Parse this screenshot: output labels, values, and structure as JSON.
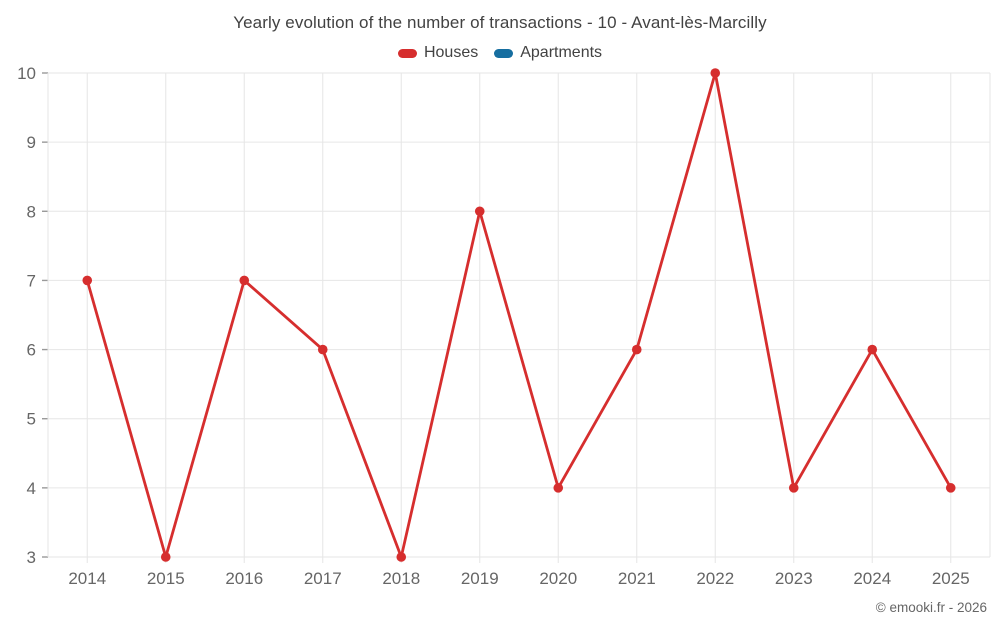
{
  "title": "Yearly evolution of the number of transactions - 10 - Avant-lès-Marcilly",
  "legend": {
    "items": [
      {
        "label": "Houses",
        "color": "#d62e2e"
      },
      {
        "label": "Apartments",
        "color": "#166ea0"
      }
    ]
  },
  "footer": {
    "copyright": "© emooki.fr - 2026"
  },
  "colors": {
    "houses": "#d62e2e",
    "apartments": "#166ea0",
    "gridline": "#e6e6e6",
    "axis_tick": "#999999",
    "axis_label": "#666666",
    "title_text": "#424242"
  },
  "chart_data": {
    "type": "line",
    "title": "Yearly evolution of the number of transactions - 10 - Avant-lès-Marcilly",
    "categories": [
      "2014",
      "2015",
      "2016",
      "2017",
      "2018",
      "2019",
      "2020",
      "2021",
      "2022",
      "2023",
      "2024",
      "2025"
    ],
    "series": [
      {
        "name": "Houses",
        "color": "#d62e2e",
        "values": [
          7,
          3,
          7,
          6,
          3,
          8,
          4,
          6,
          10,
          4,
          6,
          4
        ]
      },
      {
        "name": "Apartments",
        "color": "#166ea0",
        "values": []
      }
    ],
    "xlabel": "",
    "ylabel": "",
    "ylim": [
      3,
      10
    ],
    "yticks": [
      3,
      4,
      5,
      6,
      7,
      8,
      9,
      10
    ],
    "grid": true,
    "legend_position": "top",
    "marker": "circle"
  }
}
